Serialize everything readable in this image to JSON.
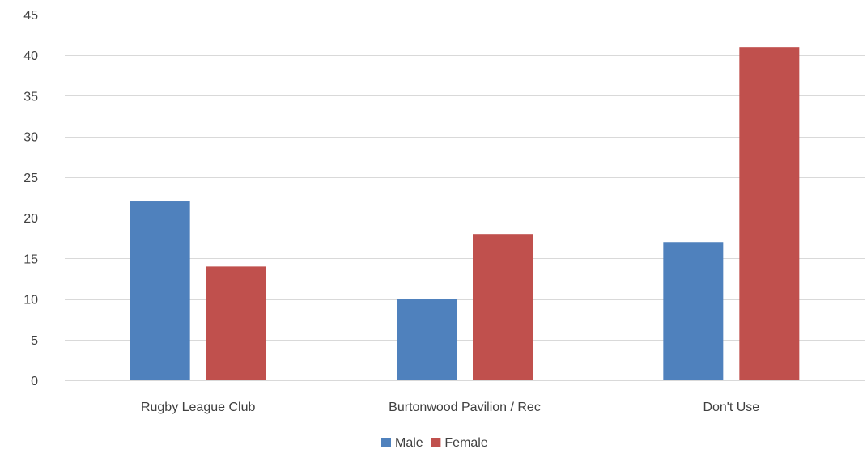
{
  "chart_data": {
    "type": "bar",
    "categories": [
      "Rugby League Club",
      "Burtonwood Pavilion / Rec",
      "Don't Use"
    ],
    "series": [
      {
        "name": "Male",
        "values": [
          22,
          10,
          17
        ],
        "color": "#4F81BD"
      },
      {
        "name": "Female",
        "values": [
          14,
          18,
          41
        ],
        "color": "#C0504D"
      }
    ],
    "ylim": [
      0,
      45
    ],
    "y_ticks": [
      0,
      5,
      10,
      15,
      20,
      25,
      30,
      35,
      40,
      45
    ],
    "grid": true,
    "legend_position": "bottom"
  }
}
